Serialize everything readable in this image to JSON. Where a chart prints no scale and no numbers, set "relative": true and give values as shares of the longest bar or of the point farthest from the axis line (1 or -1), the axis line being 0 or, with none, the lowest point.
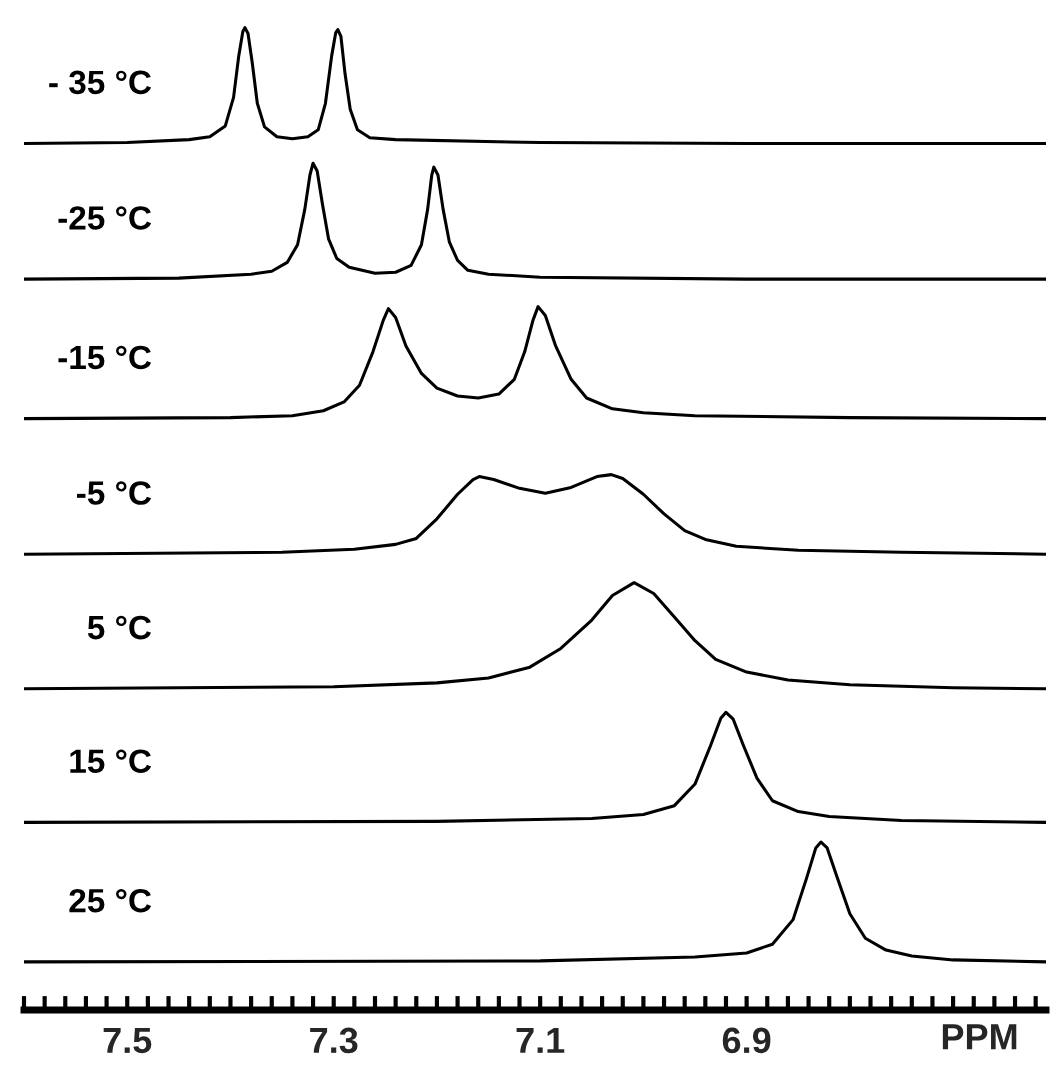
{
  "chart_data": {
    "type": "line",
    "relative": true,
    "xlim": [
      7.6,
      6.61
    ],
    "xlabel": "PPM",
    "legend": false,
    "xticks": [
      {
        "value": 7.6,
        "label": null
      },
      {
        "value": 7.58,
        "label": null
      },
      {
        "value": 7.56,
        "label": null
      },
      {
        "value": 7.54,
        "label": null
      },
      {
        "value": 7.52,
        "label": null
      },
      7.5,
      {
        "value": 7.48,
        "label": null
      },
      {
        "value": 7.46,
        "label": null
      },
      {
        "value": 7.44,
        "label": null
      },
      {
        "value": 7.42,
        "label": null
      },
      {
        "value": 7.4,
        "label": null
      },
      {
        "value": 7.38,
        "label": null
      },
      {
        "value": 7.36,
        "label": null
      },
      {
        "value": 7.34,
        "label": null
      },
      {
        "value": 7.32,
        "label": null
      },
      7.3,
      {
        "value": 7.28,
        "label": null
      },
      {
        "value": 7.26,
        "label": null
      },
      {
        "value": 7.24,
        "label": null
      },
      {
        "value": 7.22,
        "label": null
      },
      {
        "value": 7.2,
        "label": null
      },
      {
        "value": 7.18,
        "label": null
      },
      {
        "value": 7.16,
        "label": null
      },
      {
        "value": 7.14,
        "label": null
      },
      {
        "value": 7.12,
        "label": null
      },
      7.1,
      {
        "value": 7.08,
        "label": null
      },
      {
        "value": 7.06,
        "label": null
      },
      {
        "value": 7.04,
        "label": null
      },
      {
        "value": 7.02,
        "label": null
      },
      {
        "value": 7.0,
        "label": null
      },
      {
        "value": 6.98,
        "label": null
      },
      {
        "value": 6.96,
        "label": null
      },
      {
        "value": 6.94,
        "label": null
      },
      {
        "value": 6.92,
        "label": null
      },
      6.9,
      {
        "value": 6.88,
        "label": null
      },
      {
        "value": 6.86,
        "label": null
      },
      {
        "value": 6.84,
        "label": null
      },
      {
        "value": 6.82,
        "label": null
      },
      {
        "value": 6.8,
        "label": null
      },
      {
        "value": 6.78,
        "label": null
      },
      {
        "value": 6.76,
        "label": null
      },
      {
        "value": 6.74,
        "label": null
      },
      {
        "value": 6.72,
        "label": null
      },
      {
        "value": 6.7,
        "label": null
      },
      {
        "value": 6.68,
        "label": null
      },
      {
        "value": 6.66,
        "label": null
      },
      {
        "value": 6.64,
        "label": null
      },
      {
        "value": 6.62,
        "label": null
      }
    ],
    "series": [
      {
        "name": "- 35 °C",
        "color": "#000000",
        "x": [
          7.6,
          7.5,
          7.44,
          7.42,
          7.405,
          7.397,
          7.392,
          7.388,
          7.386,
          7.383,
          7.379,
          7.374,
          7.367,
          7.355,
          7.34,
          7.325,
          7.315,
          7.308,
          7.302,
          7.298,
          7.296,
          7.293,
          7.289,
          7.284,
          7.277,
          7.265,
          7.24,
          7.1,
          6.9,
          6.61
        ],
        "values": [
          0.882,
          0.883,
          0.886,
          0.889,
          0.9,
          0.929,
          0.971,
          0.996,
          1.0,
          0.994,
          0.965,
          0.923,
          0.899,
          0.889,
          0.887,
          0.889,
          0.896,
          0.923,
          0.971,
          0.995,
          0.998,
          0.991,
          0.953,
          0.917,
          0.896,
          0.888,
          0.886,
          0.883,
          0.882,
          0.882
        ]
      },
      {
        "name": "-25 °C",
        "color": "#000000",
        "x": [
          7.6,
          7.45,
          7.38,
          7.36,
          7.345,
          7.335,
          7.328,
          7.323,
          7.32,
          7.316,
          7.311,
          7.305,
          7.297,
          7.285,
          7.26,
          7.24,
          7.225,
          7.215,
          7.209,
          7.205,
          7.203,
          7.199,
          7.194,
          7.188,
          7.18,
          7.17,
          7.15,
          7.1,
          6.9,
          6.61
        ],
        "values": [
          0.744,
          0.745,
          0.749,
          0.752,
          0.761,
          0.779,
          0.815,
          0.85,
          0.862,
          0.854,
          0.821,
          0.785,
          0.765,
          0.756,
          0.75,
          0.751,
          0.758,
          0.779,
          0.815,
          0.85,
          0.858,
          0.85,
          0.815,
          0.782,
          0.763,
          0.753,
          0.749,
          0.746,
          0.744,
          0.744
        ]
      },
      {
        "name": "-15 °C",
        "color": "#000000",
        "x": [
          7.6,
          7.4,
          7.34,
          7.31,
          7.29,
          7.275,
          7.262,
          7.252,
          7.247,
          7.24,
          7.23,
          7.215,
          7.2,
          7.18,
          7.16,
          7.14,
          7.125,
          7.115,
          7.107,
          7.102,
          7.095,
          7.085,
          7.07,
          7.055,
          7.03,
          7.0,
          6.95,
          6.8,
          6.61
        ],
        "values": [
          0.602,
          0.603,
          0.605,
          0.61,
          0.619,
          0.636,
          0.67,
          0.702,
          0.714,
          0.705,
          0.676,
          0.648,
          0.633,
          0.625,
          0.623,
          0.627,
          0.642,
          0.67,
          0.702,
          0.716,
          0.707,
          0.676,
          0.642,
          0.623,
          0.612,
          0.608,
          0.605,
          0.603,
          0.602
        ]
      },
      {
        "name": "-5 °C",
        "color": "#000000",
        "x": [
          7.6,
          7.35,
          7.28,
          7.24,
          7.22,
          7.2,
          7.18,
          7.165,
          7.159,
          7.145,
          7.12,
          7.095,
          7.07,
          7.045,
          7.031,
          7.02,
          7.0,
          6.98,
          6.96,
          6.94,
          6.91,
          6.85,
          6.75,
          6.61
        ],
        "values": [
          0.464,
          0.466,
          0.469,
          0.474,
          0.48,
          0.5,
          0.525,
          0.54,
          0.543,
          0.54,
          0.531,
          0.526,
          0.532,
          0.543,
          0.545,
          0.541,
          0.525,
          0.505,
          0.488,
          0.479,
          0.472,
          0.468,
          0.466,
          0.464
        ]
      },
      {
        "name": "5 °C",
        "color": "#000000",
        "x": [
          7.6,
          7.3,
          7.2,
          7.15,
          7.11,
          7.08,
          7.05,
          7.03,
          7.009,
          6.99,
          6.97,
          6.95,
          6.93,
          6.9,
          6.86,
          6.8,
          6.7,
          6.61
        ],
        "values": [
          0.327,
          0.329,
          0.333,
          0.338,
          0.349,
          0.368,
          0.397,
          0.422,
          0.435,
          0.424,
          0.4,
          0.376,
          0.357,
          0.344,
          0.336,
          0.331,
          0.328,
          0.327
        ]
      },
      {
        "name": "15 °C",
        "color": "#000000",
        "x": [
          7.6,
          7.2,
          7.05,
          7.0,
          6.97,
          6.95,
          6.935,
          6.925,
          6.92,
          6.913,
          6.903,
          6.89,
          6.875,
          6.85,
          6.82,
          6.75,
          6.61
        ],
        "values": [
          0.191,
          0.192,
          0.195,
          0.199,
          0.208,
          0.23,
          0.269,
          0.297,
          0.303,
          0.296,
          0.269,
          0.236,
          0.213,
          0.202,
          0.197,
          0.193,
          0.191
        ]
      },
      {
        "name": "25 °C",
        "color": "#000000",
        "x": [
          7.6,
          7.1,
          6.95,
          6.9,
          6.875,
          6.855,
          6.842,
          6.833,
          6.828,
          6.822,
          6.812,
          6.8,
          6.785,
          6.765,
          6.74,
          6.7,
          6.61
        ],
        "values": [
          0.049,
          0.05,
          0.054,
          0.058,
          0.067,
          0.092,
          0.134,
          0.165,
          0.171,
          0.165,
          0.134,
          0.098,
          0.073,
          0.061,
          0.055,
          0.051,
          0.049
        ]
      }
    ]
  }
}
